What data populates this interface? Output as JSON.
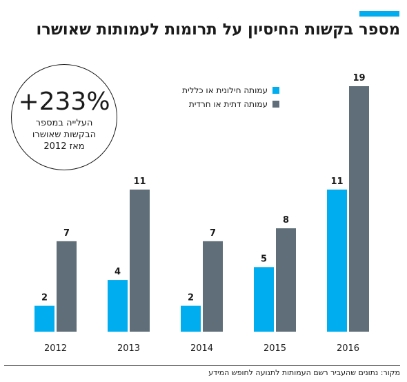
{
  "title": "מספר בקשות החיסיון על תרומות לעמותות שאושרו",
  "callout": {
    "value": "+233%",
    "line1": "העלייה במספר",
    "line2": "הבקשות שאושרו",
    "line3": "מאז 2012"
  },
  "source": "מקור: נתונים שהעביר רשם העמותות לתנועה לחופש המידע",
  "colors": {
    "accent": "#00aeef",
    "secular": "#00aeef",
    "religious": "#5f6e78"
  },
  "chart_data": {
    "type": "bar",
    "categories": [
      "2012",
      "2013",
      "2014",
      "2015",
      "2016"
    ],
    "series": [
      {
        "name": "עמותה חילונית או כללית",
        "values": [
          2,
          4,
          2,
          5,
          11
        ],
        "color": "#00aeef"
      },
      {
        "name": "עמותה דתית או חרדית",
        "values": [
          7,
          11,
          7,
          8,
          19
        ],
        "color": "#5f6e78"
      }
    ],
    "ylim": [
      0,
      19
    ],
    "grid": false,
    "legend_position": "top-center"
  }
}
